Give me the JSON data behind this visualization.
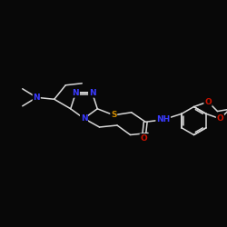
{
  "background_color": "#080808",
  "bond_color": "#d8d8d8",
  "atom_colors": {
    "N": "#3a3aff",
    "S": "#cc8800",
    "O": "#cc1100",
    "C": "#d8d8d8"
  },
  "figsize": [
    2.5,
    2.5
  ],
  "dpi": 100
}
